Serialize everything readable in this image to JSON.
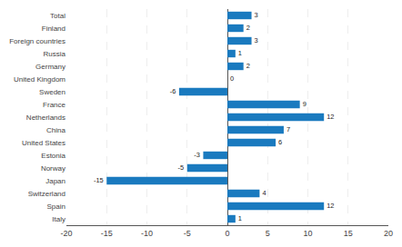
{
  "chart_data": {
    "type": "bar",
    "orientation": "horizontal",
    "categories": [
      "Italy",
      "Spain",
      "Switzerland",
      "Japan",
      "Norway",
      "Estonia",
      "United States",
      "China",
      "Netherlands",
      "France",
      "Sweden",
      "United Kingdom",
      "Germany",
      "Russia",
      "Foreign countries",
      "Finland",
      "Total"
    ],
    "values": [
      1,
      12,
      4,
      -15,
      -5,
      -3,
      6,
      7,
      12,
      9,
      -6,
      0,
      2,
      1,
      3,
      2,
      3
    ],
    "color": "#1a7abf",
    "xlim": [
      -20,
      20
    ],
    "xticks": [
      -20,
      -15,
      -10,
      -5,
      0,
      5,
      10,
      15,
      20
    ],
    "grid": true,
    "data_labels": true
  }
}
